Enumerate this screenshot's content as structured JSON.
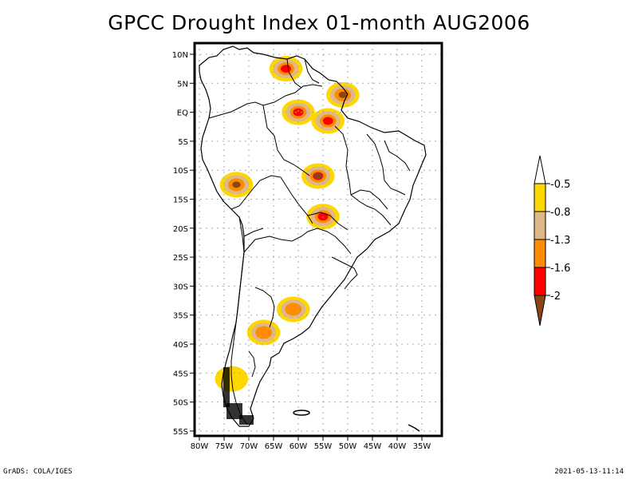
{
  "title": "GPCC Drought Index 01-month AUG2006",
  "footer": {
    "left": "GrADS: COLA/IGES",
    "right": "2021-05-13-11:14"
  },
  "map": {
    "region": "South America",
    "lat_labels": [
      "10N",
      "5N",
      "EQ",
      "5S",
      "10S",
      "15S",
      "20S",
      "25S",
      "30S",
      "35S",
      "40S",
      "45S",
      "50S",
      "55S"
    ],
    "lat_values": [
      10,
      5,
      0,
      -5,
      -10,
      -15,
      -20,
      -25,
      -30,
      -35,
      -40,
      -45,
      -50,
      -55
    ],
    "lon_labels": [
      "80W",
      "75W",
      "70W",
      "65W",
      "60W",
      "55W",
      "50W",
      "45W",
      "40W",
      "35W"
    ],
    "lon_values": [
      -80,
      -75,
      -70,
      -65,
      -60,
      -55,
      -50,
      -45,
      -40,
      -35
    ],
    "lon_range": [
      -81,
      -31
    ],
    "lat_range": [
      12,
      -56
    ],
    "grid": "dotted"
  },
  "colorbar": {
    "levels": [
      "-0.5",
      "-0.8",
      "-1.3",
      "-1.6",
      "-2"
    ],
    "colors": [
      "#ffffff",
      "#ffd700",
      "#deb887",
      "#ff8c00",
      "#ff0000",
      "#8b4513"
    ],
    "triangles": "both"
  },
  "anomaly_regions": [
    {
      "name": "venezuela-north",
      "lon": -62.5,
      "lat": 7.5,
      "levels": [
        1,
        2,
        3,
        4
      ]
    },
    {
      "name": "amapa-para-coast",
      "lon": -51,
      "lat": 3,
      "levels": [
        1,
        2,
        3,
        5
      ]
    },
    {
      "name": "central-amazon",
      "lon": -60,
      "lat": 0,
      "levels": [
        1,
        2,
        3,
        4
      ]
    },
    {
      "name": "lower-amazon",
      "lon": -54,
      "lat": -1.5,
      "levels": [
        1,
        2,
        3,
        4
      ]
    },
    {
      "name": "peru-south",
      "lon": -72.5,
      "lat": -12.5,
      "levels": [
        1,
        2,
        3,
        5
      ]
    },
    {
      "name": "mato-grosso",
      "lon": -56,
      "lat": -11,
      "levels": [
        1,
        2,
        3,
        4,
        5
      ]
    },
    {
      "name": "mato-grosso-south",
      "lon": -55,
      "lat": -18,
      "levels": [
        1,
        2,
        3,
        4
      ]
    },
    {
      "name": "argentina-east",
      "lon": -61,
      "lat": -34,
      "levels": [
        1,
        2,
        3
      ]
    },
    {
      "name": "patagonia-north",
      "lon": -67,
      "lat": -38,
      "levels": [
        1,
        2,
        3
      ]
    },
    {
      "name": "chile-south",
      "lon": -73.5,
      "lat": -46,
      "levels": [
        1
      ]
    }
  ]
}
